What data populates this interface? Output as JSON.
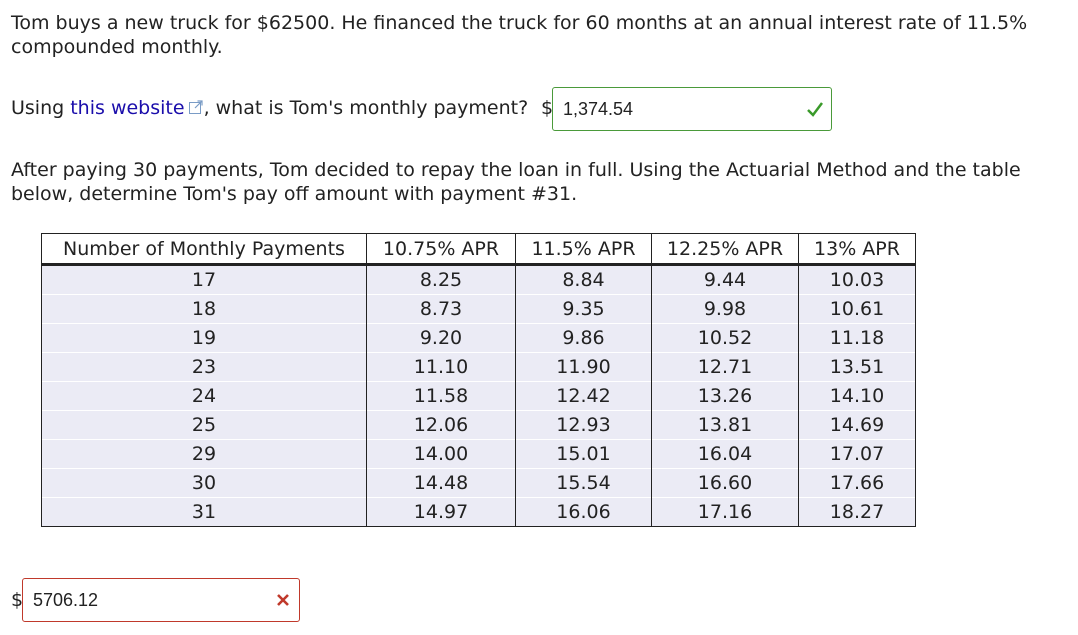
{
  "problem": {
    "intro": "Tom buys a new truck for $62500. He financed the truck for 60 months at an annual interest rate of 11.5% compounded monthly.",
    "q1_prefix": "Using ",
    "q1_link": "this website",
    "q1_suffix": ", what is Tom's monthly payment?",
    "currency": "$",
    "q1_answer": "1,374.54",
    "q1_status": "correct",
    "part2": "After paying 30 payments, Tom decided to repay the loan in full. Using the Actuarial Method and the table below, determine Tom's pay off amount with payment #31.",
    "q2_answer": "5706.12",
    "q2_status": "incorrect"
  },
  "table": {
    "headers": [
      "Number of Monthly Payments",
      "10.75% APR",
      "11.5% APR",
      "12.25% APR",
      "13% APR"
    ],
    "rows": [
      [
        "17",
        "8.25",
        "8.84",
        "9.44",
        "10.03"
      ],
      [
        "18",
        "8.73",
        "9.35",
        "9.98",
        "10.61"
      ],
      [
        "19",
        "9.20",
        "9.86",
        "10.52",
        "11.18"
      ],
      [
        "23",
        "11.10",
        "11.90",
        "12.71",
        "13.51"
      ],
      [
        "24",
        "11.58",
        "12.42",
        "13.26",
        "14.10"
      ],
      [
        "25",
        "12.06",
        "12.93",
        "13.81",
        "14.69"
      ],
      [
        "29",
        "14.00",
        "15.01",
        "16.04",
        "17.07"
      ],
      [
        "30",
        "14.48",
        "15.54",
        "16.60",
        "17.66"
      ],
      [
        "31",
        "14.97",
        "16.06",
        "17.16",
        "18.27"
      ]
    ]
  },
  "colors": {
    "correct": "#3a9a2a",
    "incorrect": "#c0392b",
    "link": "#1a0dab"
  }
}
